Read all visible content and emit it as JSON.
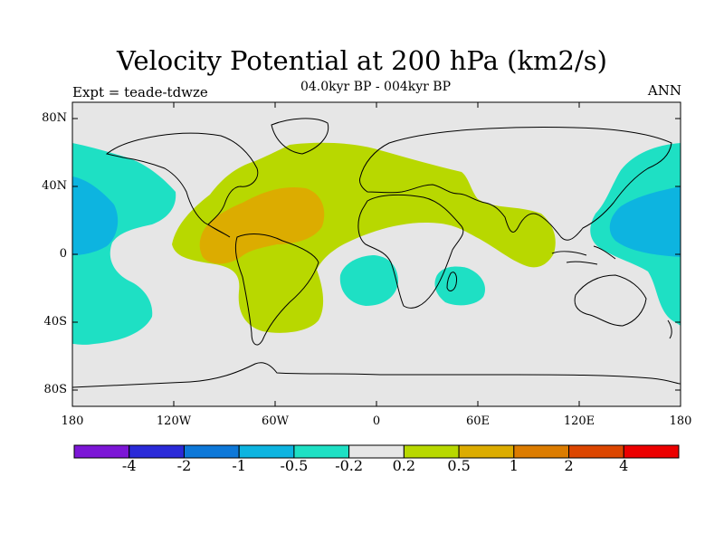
{
  "title": "Velocity Potential at 200 hPa (km2/s)",
  "subtitle": "04.0kyr BP - 004kyr BP",
  "left_label": "Expt = teade-tdwze",
  "right_label": "ANN",
  "lat_labels": [
    "80N",
    "40N",
    "0",
    "40S",
    "80S"
  ],
  "lon_labels": [
    "180",
    "120W",
    "60W",
    "0",
    "60E",
    "120E",
    "180"
  ],
  "colorbar": {
    "colors": [
      "#7c16d6",
      "#2a2ad8",
      "#0d78d8",
      "#0db4e0",
      "#1ee0c4",
      "#e6e6e6",
      "#b8d800",
      "#dcac00",
      "#dc7c00",
      "#dc4600",
      "#ec0000"
    ],
    "labels": [
      "-4",
      "-2",
      "-1",
      "-0.5",
      "-0.2",
      "0.2",
      "0.5",
      "1",
      "2",
      "4"
    ]
  },
  "map_colors": {
    "ocean_background": "#e6e6e6",
    "weak_positive": "#b8d800",
    "positive": "#dcac00",
    "weak_negative": "#1ee0c4",
    "negative": "#0db4e0"
  }
}
